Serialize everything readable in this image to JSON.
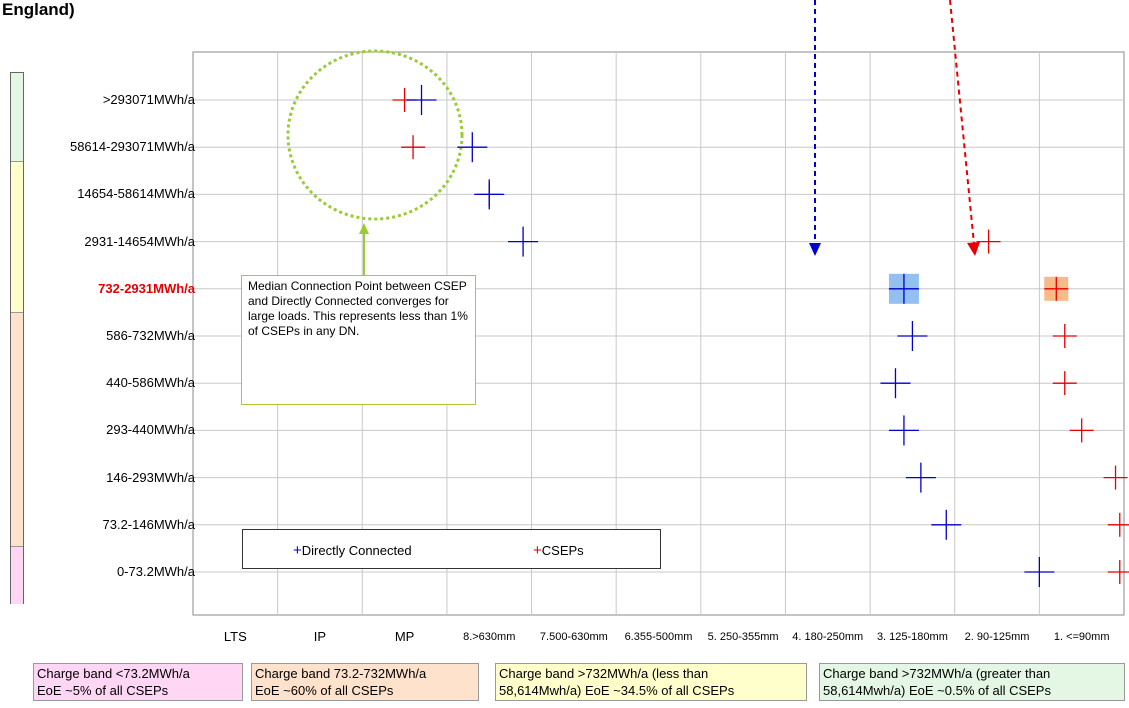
{
  "title_fragment": "England)",
  "legend": {
    "series1": "Directly Connected",
    "series2": "CSEPs"
  },
  "note": "Median Connection Point between CSEP and Directly Connected converges for large loads. This represents less than 1% of CSEPs in any DN.",
  "bands": [
    {
      "line1": "Charge band <73.2MWh/a",
      "line2": "EoE ~5% of all CSEPs",
      "color": "#ffd7f5"
    },
    {
      "line1": "Charge band 73.2-732MWh/a",
      "line2": "EoE ~60% of all CSEPs",
      "color": "#ffe2cc"
    },
    {
      "line1": "Charge band >732MWh/a (less than",
      "line2": "58,614Mwh/a) EoE ~34.5% of all CSEPs",
      "color": "#ffffcc"
    },
    {
      "line1": "Charge band >732MWh/a (greater than",
      "line2": "58,614Mwh/a) EoE ~0.5% of all CSEPs",
      "color": "#e4f7e4"
    }
  ],
  "colors": {
    "direct": "#0000cc",
    "csep": "#e60000",
    "highlight_label": "#e60000",
    "note_border": "#a6c93b",
    "circle": "#99cc33"
  },
  "chart_data": {
    "type": "scatter",
    "categories_x": [
      "LTS",
      "IP",
      "MP",
      "8.>630mm",
      "7.500-630mm",
      "6.355-500mm",
      "5. 250-355mm",
      "4. 180-250mm",
      "3. 125-180mm",
      "2. 90-125mm",
      "1. <=90mm"
    ],
    "categories_y": [
      ">293071MWh/a",
      "58614-293071MWh/a",
      "14654-58614MWh/a",
      "2931-14654MWh/a",
      "732-2931MWh/a",
      "586-732MWh/a",
      "440-586MWh/a",
      "293-440MWh/a",
      "146-293MWh/a",
      "73.2-146MWh/a",
      "0-73.2MWh/a"
    ],
    "highlight_y": "732-2931MWh/a",
    "series": [
      {
        "name": "Directly Connected",
        "points": [
          [
            1.7,
            0
          ],
          [
            2.3,
            1
          ],
          [
            2.5,
            2
          ],
          [
            2.9,
            3
          ],
          [
            7.4,
            4
          ],
          [
            7.5,
            5
          ],
          [
            7.3,
            6
          ],
          [
            7.4,
            7
          ],
          [
            7.6,
            8
          ],
          [
            7.9,
            9
          ],
          [
            9.0,
            10
          ]
        ]
      },
      {
        "name": "CSEPs",
        "points": [
          [
            1.5,
            0
          ],
          [
            1.6,
            1
          ],
          [
            2.5,
            2
          ],
          [
            8.4,
            3
          ],
          [
            9.2,
            4
          ],
          [
            9.3,
            5
          ],
          [
            9.3,
            6
          ],
          [
            9.5,
            7
          ],
          [
            9.9,
            8
          ],
          [
            9.95,
            9
          ],
          [
            9.95,
            10
          ]
        ]
      }
    ],
    "highlighted_points": [
      {
        "series": "Directly Connected",
        "y": "732-2931MWh/a"
      },
      {
        "series": "CSEPs",
        "y": "732-2931MWh/a"
      }
    ],
    "grid": true
  }
}
